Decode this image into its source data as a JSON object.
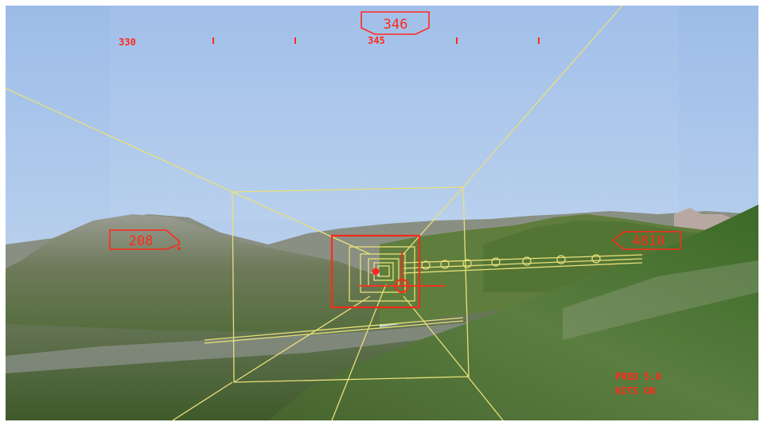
{
  "hud": {
    "heading": {
      "current": "346",
      "scale_labels": [
        "330",
        "345"
      ]
    },
    "airspeed": "208",
    "altitude": "4810",
    "status": {
      "line1": "PRED 5.0",
      "line2": "HITS ON"
    }
  },
  "colors": {
    "hud": "#ff2a1a",
    "tunnel": "#e8e07a",
    "sky_top": "#9fbfe9",
    "sky_horizon": "#c8d8ee",
    "terrain_green": "#4e7a34"
  },
  "icons": {
    "flight_path_marker": "circle-with-wings",
    "aircraft_dot": "filled-dot",
    "target_box": "square-reticle"
  }
}
